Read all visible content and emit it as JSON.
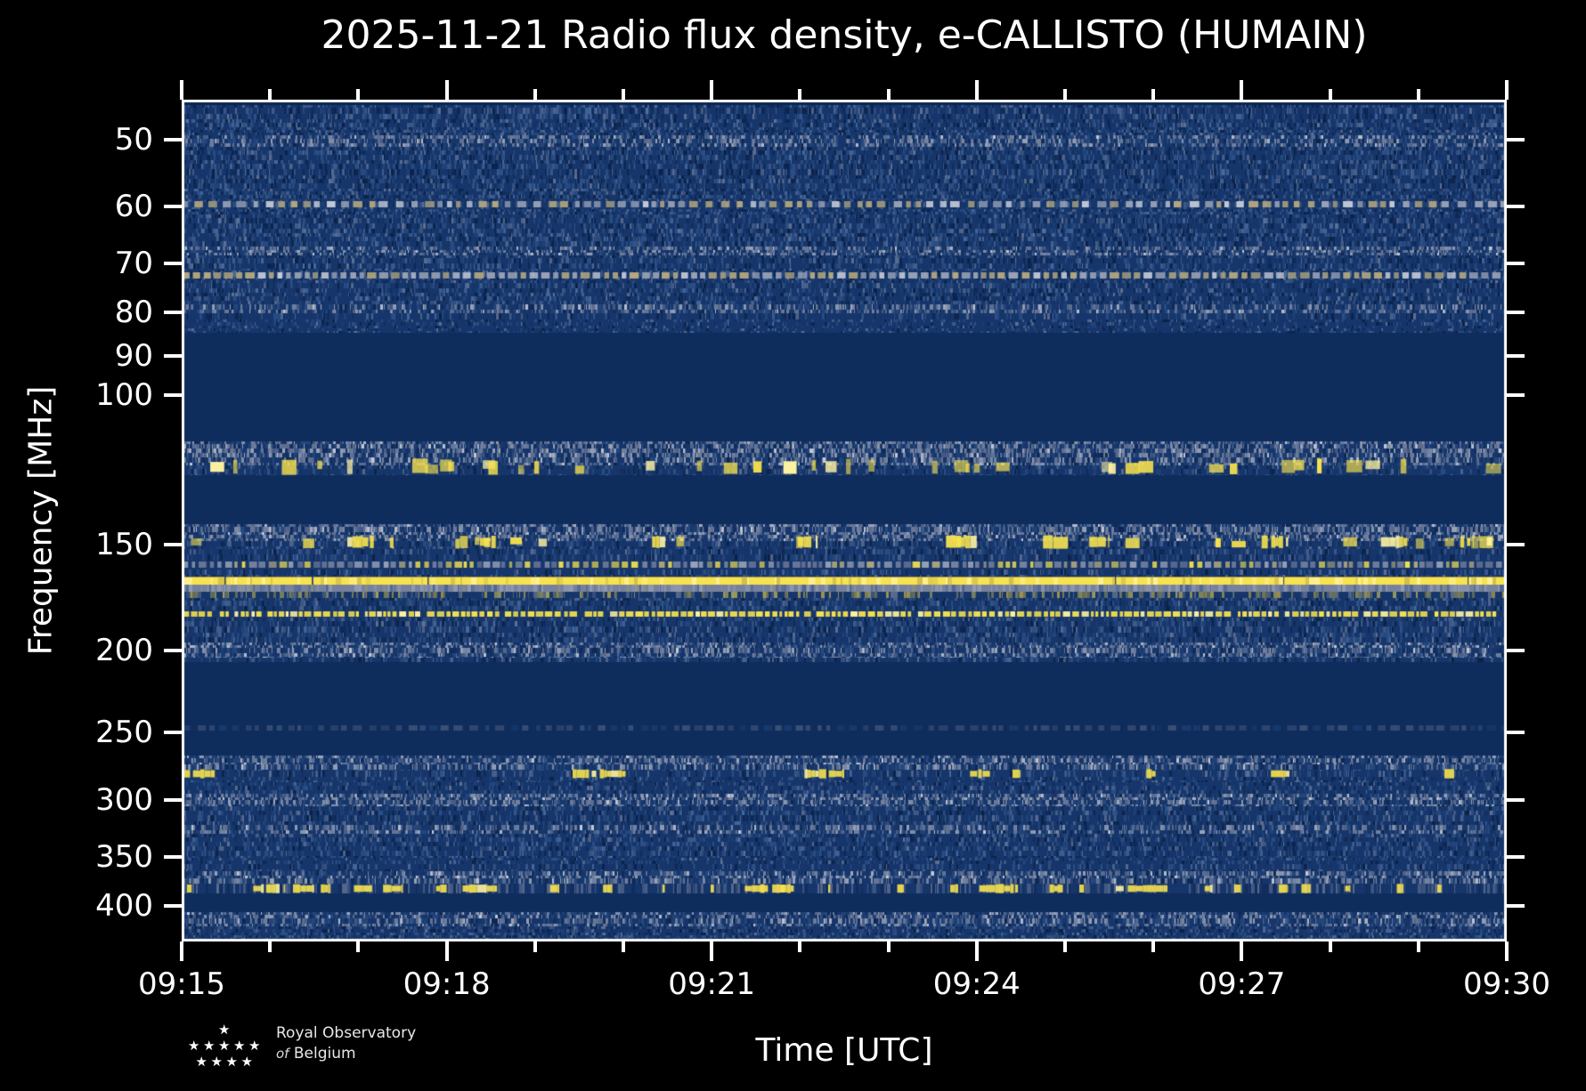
{
  "figure": {
    "title": "2025-11-21 Radio flux density, e-CALLISTO (HUMAIN)",
    "background": "#000000",
    "text_color": "#ffffff"
  },
  "chart_data": {
    "type": "heatmap",
    "subtype": "radio-spectrogram",
    "title": "2025-11-21 Radio flux density, e-CALLISTO (HUMAIN)",
    "xlabel": "Time [UTC]",
    "ylabel": "Frequency [MHz]",
    "x_start": "09:15",
    "x_end": "09:30",
    "x_total_minutes": 15,
    "x_major_ticks": [
      "09:15",
      "09:18",
      "09:21",
      "09:24",
      "09:27",
      "09:30"
    ],
    "x_major_step_minutes": 3,
    "x_minor_step_minutes": 1,
    "y_scale": "log",
    "y_axis_inverted": true,
    "y_min_mhz": 44.9,
    "y_max_mhz": 440.3,
    "y_ticks_mhz": [
      50,
      60,
      70,
      80,
      90,
      100,
      150,
      200,
      250,
      300,
      350,
      400
    ],
    "grid": false,
    "legend": "none",
    "colormap": {
      "flat_dark": "#0b2550",
      "quiet": "#0e2c5c",
      "base": "#16366b",
      "dark_line": "#0a2148",
      "light_blue": "#2d5187",
      "lighter_blue": "#49689a",
      "gray": "#76819d",
      "light_gray": "#9aa3b6",
      "bright_gray": "#c6cbd7",
      "tan": "#b4a77e",
      "olive": "#b3a14a",
      "yellow": "#f7e24f",
      "bright_yellow": "#fff3a1"
    },
    "bands": [
      {
        "f_lo": 44.9,
        "f_hi": 45.6,
        "kind": "flat_dark"
      },
      {
        "f_lo": 45.6,
        "f_hi": 49.5,
        "kind": "noise",
        "i": 0.75
      },
      {
        "f_lo": 49.5,
        "f_hi": 51.0,
        "kind": "gray_noise",
        "i": 0.5
      },
      {
        "f_lo": 51.0,
        "f_hi": 58.9,
        "kind": "noise",
        "i": 0.8
      },
      {
        "f_lo": 58.9,
        "f_hi": 60.4,
        "kind": "dash_row",
        "i": 0.55
      },
      {
        "f_lo": 60.4,
        "f_hi": 66.9,
        "kind": "noise",
        "i": 0.8
      },
      {
        "f_lo": 66.9,
        "f_hi": 68.5,
        "kind": "gray_noise",
        "i": 0.5
      },
      {
        "f_lo": 68.5,
        "f_hi": 71.4,
        "kind": "noise",
        "i": 0.7
      },
      {
        "f_lo": 71.4,
        "f_hi": 73.2,
        "kind": "dash_row",
        "i": 0.95
      },
      {
        "f_lo": 73.2,
        "f_hi": 78.3,
        "kind": "noise",
        "i": 0.7
      },
      {
        "f_lo": 78.3,
        "f_hi": 80.1,
        "kind": "gray_noise",
        "i": 0.45
      },
      {
        "f_lo": 80.1,
        "f_hi": 84.6,
        "kind": "noise",
        "i": 0.45
      },
      {
        "f_lo": 84.6,
        "f_hi": 113.5,
        "kind": "flat_quiet"
      },
      {
        "f_lo": 113.5,
        "f_hi": 118.5,
        "kind": "gray_noise",
        "i": 0.7
      },
      {
        "f_lo": 118.5,
        "f_hi": 124.2,
        "kind": "speckle_yellow",
        "i": 0.55
      },
      {
        "f_lo": 124.2,
        "f_hi": 141.8,
        "kind": "flat_quiet"
      },
      {
        "f_lo": 141.8,
        "f_hi": 146.0,
        "kind": "gray_noise",
        "i": 0.75
      },
      {
        "f_lo": 146.0,
        "f_hi": 152.0,
        "kind": "speckle_yellow",
        "i": 0.35,
        "clusters": "speckle2"
      },
      {
        "f_lo": 152.0,
        "f_hi": 156.8,
        "kind": "noise",
        "i": 0.7
      },
      {
        "f_lo": 156.8,
        "f_hi": 160.6,
        "kind": "gray_yellow_dash",
        "i": 0.75
      },
      {
        "f_lo": 160.6,
        "f_hi": 163.7,
        "kind": "noise",
        "i": 0.6
      },
      {
        "f_lo": 163.7,
        "f_hi": 167.2,
        "kind": "yellow_solid"
      },
      {
        "f_lo": 167.2,
        "f_hi": 170.4,
        "kind": "gray_solid"
      },
      {
        "f_lo": 170.4,
        "f_hi": 173.3,
        "kind": "olive_noise",
        "i": 0.6
      },
      {
        "f_lo": 173.3,
        "f_hi": 179.3,
        "kind": "noise",
        "i": 0.75
      },
      {
        "f_lo": 179.3,
        "f_hi": 182.7,
        "kind": "yellow_dash",
        "i": 0.85
      },
      {
        "f_lo": 182.7,
        "f_hi": 195.6,
        "kind": "noise",
        "i": 0.8
      },
      {
        "f_lo": 195.6,
        "f_hi": 203.7,
        "kind": "gray_noise",
        "i": 0.5
      },
      {
        "f_lo": 203.7,
        "f_hi": 206.2,
        "kind": "noise",
        "i": 0.6
      },
      {
        "f_lo": 206.2,
        "f_hi": 242.9,
        "kind": "flat_quiet"
      },
      {
        "f_lo": 242.9,
        "f_hi": 250.0,
        "kind": "faint_dash",
        "i": 0.4
      },
      {
        "f_lo": 250.0,
        "f_hi": 265.9,
        "kind": "flat_quiet"
      },
      {
        "f_lo": 265.9,
        "f_hi": 272.3,
        "kind": "gray_noise",
        "i": 0.5
      },
      {
        "f_lo": 272.3,
        "f_hi": 285.8,
        "kind": "speckle_sparse",
        "i": 0.5,
        "clusters": "sparse"
      },
      {
        "f_lo": 285.8,
        "f_hi": 295.0,
        "kind": "noise",
        "i": 0.6
      },
      {
        "f_lo": 295.0,
        "f_hi": 305.4,
        "kind": "gray_noise",
        "i": 0.55
      },
      {
        "f_lo": 305.4,
        "f_hi": 320.8,
        "kind": "noise",
        "i": 0.65
      },
      {
        "f_lo": 320.8,
        "f_hi": 328.8,
        "kind": "gray_noise",
        "i": 0.5
      },
      {
        "f_lo": 328.8,
        "f_hi": 350.6,
        "kind": "noise",
        "i": 0.7
      },
      {
        "f_lo": 350.6,
        "f_hi": 363.7,
        "kind": "noise",
        "i": 0.5
      },
      {
        "f_lo": 363.7,
        "f_hi": 376.4,
        "kind": "gray_noise",
        "i": 0.55
      },
      {
        "f_lo": 376.4,
        "f_hi": 386.6,
        "kind": "yellow_blob_row",
        "i": 0.8,
        "clusters": "blob"
      },
      {
        "f_lo": 386.6,
        "f_hi": 406.8,
        "kind": "flat_quiet"
      },
      {
        "f_lo": 406.8,
        "f_hi": 423.0,
        "kind": "gray_noise",
        "i": 0.5
      },
      {
        "f_lo": 423.0,
        "f_hi": 440.3,
        "kind": "noise",
        "i": 0.7
      }
    ],
    "clusters": {
      "sparse": [
        [
          0.0,
          0.025
        ],
        [
          0.295,
          0.335
        ],
        [
          0.47,
          0.5
        ],
        [
          0.595,
          0.61
        ],
        [
          0.627,
          0.633
        ],
        [
          0.728,
          0.735
        ],
        [
          0.822,
          0.836
        ],
        [
          0.953,
          0.962
        ]
      ],
      "speckle2": [
        [
          0.125,
          0.145
        ],
        [
          0.225,
          0.24
        ],
        [
          0.355,
          0.365
        ],
        [
          0.465,
          0.48
        ],
        [
          0.585,
          0.6
        ],
        [
          0.65,
          0.66
        ],
        [
          0.685,
          0.7
        ],
        [
          0.815,
          0.835
        ],
        [
          0.905,
          0.925
        ],
        [
          0.965,
          0.975
        ]
      ],
      "blob": [
        [
          0.054,
          0.078
        ],
        [
          0.084,
          0.1
        ],
        [
          0.105,
          0.112
        ],
        [
          0.13,
          0.145
        ],
        [
          0.152,
          0.167
        ],
        [
          0.192,
          0.2
        ],
        [
          0.212,
          0.238
        ],
        [
          0.278,
          0.285
        ],
        [
          0.318,
          0.325
        ],
        [
          0.425,
          0.44
        ],
        [
          0.437,
          0.462
        ],
        [
          0.54,
          0.545
        ],
        [
          0.58,
          0.586
        ],
        [
          0.602,
          0.628
        ],
        [
          0.655,
          0.665
        ],
        [
          0.705,
          0.744
        ],
        [
          0.772,
          0.778
        ],
        [
          0.828,
          0.835
        ],
        [
          0.845,
          0.852
        ],
        [
          0.878,
          0.882
        ],
        [
          0.917,
          0.922
        ]
      ]
    }
  },
  "branding": {
    "org_line1": "Royal Observatory",
    "org_line2_italic": "of",
    "org_line2": "Belgium",
    "star_rows": [
      1,
      5,
      4
    ]
  }
}
